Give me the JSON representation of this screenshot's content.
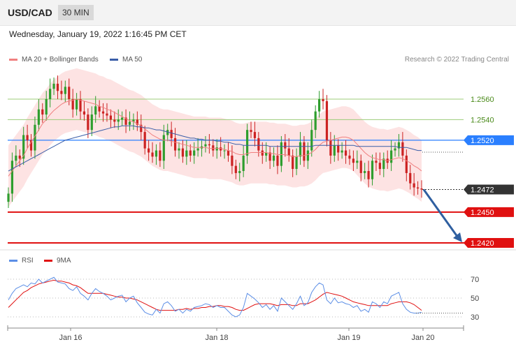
{
  "header": {
    "symbol": "USD/CAD",
    "timeframe": "30 MIN"
  },
  "timestamp": "Wednesday, January 19, 2022 1:16:45 PM CET",
  "legend": {
    "ma20": "MA 20 + Bollinger Bands",
    "ma50": "MA 50"
  },
  "credit": "Research © 2022 Trading Central",
  "rsi_legend": {
    "rsi": "RSI",
    "ma9": "9MA"
  },
  "colors": {
    "up": "#2e9e2e",
    "down": "#cc2222",
    "ma20": "#f08080",
    "ma50": "#3a5ea8",
    "bands": "#fde3e3",
    "support": "#e01010",
    "pivot": "#2a7fff",
    "resistance": "#9ccc7a",
    "arrow": "#2f5fa0",
    "rsi": "#5b8ee6",
    "rsi_ma": "#e01010"
  },
  "chart_data": [
    {
      "type": "line",
      "name": "price",
      "xticks": [
        "Jan 16",
        "Jan 18",
        "Jan 19",
        "Jan 20"
      ],
      "ylim": [
        2410,
        2590
      ],
      "levels": [
        {
          "value": 1.256,
          "label": "1.2560",
          "kind": "resistance"
        },
        {
          "value": 1.254,
          "label": "1.2540",
          "kind": "resistance"
        },
        {
          "value": 1.252,
          "label": "1.2520",
          "kind": "pivot"
        },
        {
          "value": 1.2472,
          "label": "1.2472",
          "kind": "last"
        },
        {
          "value": 1.245,
          "label": "1.2450",
          "kind": "support"
        },
        {
          "value": 1.242,
          "label": "1.2420",
          "kind": "support"
        }
      ],
      "close": [
        1.2468,
        1.25,
        1.2505,
        1.2502,
        1.2525,
        1.252,
        1.251,
        1.2535,
        1.255,
        1.2545,
        1.256,
        1.257,
        1.2575,
        1.2568,
        1.2565,
        1.2572,
        1.256,
        1.255,
        1.256,
        1.2548,
        1.2545,
        1.253,
        1.2545,
        1.2553,
        1.2548,
        1.2546,
        1.2544,
        1.254,
        1.2538,
        1.254,
        1.2542,
        1.2535,
        1.2538,
        1.254,
        1.2535,
        1.2528,
        1.2512,
        1.2508,
        1.2504,
        1.251,
        1.25,
        1.2525,
        1.253,
        1.2522,
        1.251,
        1.2512,
        1.2504,
        1.251,
        1.2505,
        1.251,
        1.2512,
        1.2514,
        1.2516,
        1.2515,
        1.251,
        1.2513,
        1.251,
        1.251,
        1.2505,
        1.2495,
        1.2488,
        1.249,
        1.2505,
        1.253,
        1.2528,
        1.2522,
        1.251,
        1.2505,
        1.2508,
        1.25,
        1.2505,
        1.2495,
        1.2518,
        1.2512,
        1.2505,
        1.2492,
        1.2504,
        1.2518,
        1.25,
        1.251,
        1.253,
        1.2548,
        1.256,
        1.2558,
        1.252,
        1.2505,
        1.2515,
        1.2508,
        1.251,
        1.2505,
        1.2502,
        1.2498,
        1.25,
        1.2488,
        1.249,
        1.2482,
        1.25,
        1.2498,
        1.2492,
        1.2502,
        1.2498,
        1.251,
        1.2512,
        1.2518,
        1.2505,
        1.2488,
        1.2478,
        1.2474,
        1.2473,
        1.2472
      ],
      "ma20": [
        1.2485,
        1.249,
        1.2495,
        1.25,
        1.2505,
        1.2512,
        1.2518,
        1.2524,
        1.253,
        1.2536,
        1.254,
        1.2545,
        1.2549,
        1.2552,
        1.2555,
        1.2557,
        1.2558,
        1.2559,
        1.256,
        1.2559,
        1.2558,
        1.2557,
        1.2556,
        1.2555,
        1.2553,
        1.2552,
        1.255,
        1.2549,
        1.2547,
        1.2545,
        1.2543,
        1.2541,
        1.2539,
        1.2538,
        1.2536,
        1.2534,
        1.2531,
        1.2528,
        1.2525,
        1.2523,
        1.2521,
        1.252,
        1.252,
        1.2519,
        1.2518,
        1.2517,
        1.2516,
        1.2515,
        1.2514,
        1.2513,
        1.2513,
        1.2513,
        1.2513,
        1.2512,
        1.2512,
        1.2512,
        1.2512,
        1.2511,
        1.251,
        1.2509,
        1.2507,
        1.2506,
        1.2506,
        1.2507,
        1.2508,
        1.2508,
        1.2508,
        1.2508,
        1.2508,
        1.2507,
        1.2507,
        1.2506,
        1.2506,
        1.2506,
        1.2505,
        1.2504,
        1.2504,
        1.2505,
        1.2505,
        1.2506,
        1.2508,
        1.2511,
        1.2515,
        1.2518,
        1.2519,
        1.252,
        1.2521,
        1.2522,
        1.2523,
        1.2523,
        1.2522,
        1.252,
        1.2516,
        1.2512,
        1.2508,
        1.2505,
        1.2503,
        1.2502,
        1.2501,
        1.2501,
        1.25,
        1.2501,
        1.2502,
        1.2503,
        1.2502,
        1.25,
        1.2498,
        1.2495,
        1.2493,
        1.249
      ],
      "ma50": [
        1.249,
        1.2492,
        1.2494,
        1.2496,
        1.2498,
        1.25,
        1.2502,
        1.2504,
        1.2506,
        1.2508,
        1.251,
        1.2512,
        1.2514,
        1.2516,
        1.2518,
        1.252,
        1.2521,
        1.2522,
        1.2523,
        1.2524,
        1.2525,
        1.2526,
        1.2527,
        1.2528,
        1.2529,
        1.253,
        1.2531,
        1.2532,
        1.2533,
        1.2533,
        1.2534,
        1.2534,
        1.2534,
        1.2534,
        1.2533,
        1.2533,
        1.2532,
        1.2532,
        1.2531,
        1.253,
        1.253,
        1.2529,
        1.2528,
        1.2527,
        1.2526,
        1.2525,
        1.2524,
        1.2523,
        1.2522,
        1.2522,
        1.2521,
        1.2521,
        1.252,
        1.252,
        1.252,
        1.2519,
        1.2519,
        1.2518,
        1.2518,
        1.2517,
        1.2516,
        1.2516,
        1.2515,
        1.2515,
        1.2515,
        1.2515,
        1.2515,
        1.2515,
        1.2515,
        1.2514,
        1.2514,
        1.2514,
        1.2514,
        1.2514,
        1.2514,
        1.2514,
        1.2514,
        1.2514,
        1.2514,
        1.2514,
        1.2514,
        1.2515,
        1.2515,
        1.2515,
        1.2515,
        1.2515,
        1.2515,
        1.2515,
        1.2515,
        1.2515,
        1.2515,
        1.2515,
        1.2514,
        1.2514,
        1.2514,
        1.2514,
        1.2514,
        1.2514,
        1.2514,
        1.2514,
        1.2514,
        1.2514,
        1.2514,
        1.2513,
        1.2513,
        1.2513,
        1.2512,
        1.2511,
        1.251,
        1.251
      ],
      "bands_width": 0.003
    },
    {
      "type": "line",
      "name": "rsi",
      "yticks": [
        "70",
        "50",
        "30"
      ],
      "ylim": [
        25,
        80
      ],
      "rsi": [
        48,
        55,
        60,
        62,
        64,
        62,
        66,
        65,
        70,
        66,
        68,
        70,
        72,
        67,
        66,
        65,
        60,
        58,
        62,
        55,
        52,
        48,
        55,
        60,
        57,
        55,
        52,
        48,
        50,
        52,
        53,
        46,
        50,
        52,
        45,
        40,
        35,
        33,
        32,
        38,
        34,
        44,
        46,
        42,
        36,
        38,
        34,
        38,
        36,
        40,
        41,
        42,
        44,
        43,
        40,
        42,
        40,
        40,
        36,
        32,
        30,
        32,
        40,
        55,
        52,
        49,
        45,
        40,
        43,
        38,
        42,
        36,
        50,
        46,
        42,
        38,
        44,
        52,
        42,
        45,
        56,
        62,
        66,
        64,
        48,
        44,
        50,
        45,
        46,
        44,
        43,
        40,
        42,
        36,
        38,
        35,
        46,
        44,
        40,
        46,
        44,
        52,
        54,
        56,
        44,
        38,
        35,
        34,
        34,
        35
      ],
      "ma9": [
        40,
        44,
        48,
        52,
        56,
        58,
        61,
        63,
        65,
        66,
        67,
        68,
        69,
        68,
        68,
        67,
        66,
        64,
        63,
        61,
        58,
        55,
        55,
        55,
        55,
        55,
        54,
        53,
        52,
        51,
        51,
        50,
        50,
        49,
        48,
        46,
        44,
        42,
        40,
        38,
        37,
        37,
        37,
        37,
        37,
        38,
        38,
        39,
        38,
        39,
        39,
        40,
        40,
        41,
        41,
        42,
        42,
        41,
        41,
        40,
        38,
        37,
        37,
        39,
        41,
        43,
        44,
        44,
        44,
        44,
        43,
        42,
        43,
        43,
        43,
        42,
        42,
        44,
        44,
        44,
        46,
        48,
        51,
        54,
        56,
        55,
        54,
        53,
        52,
        50,
        48,
        46,
        45,
        44,
        43,
        42,
        42,
        42,
        42,
        42,
        42,
        44,
        45,
        46,
        46,
        46,
        45,
        43,
        40,
        37
      ]
    }
  ]
}
